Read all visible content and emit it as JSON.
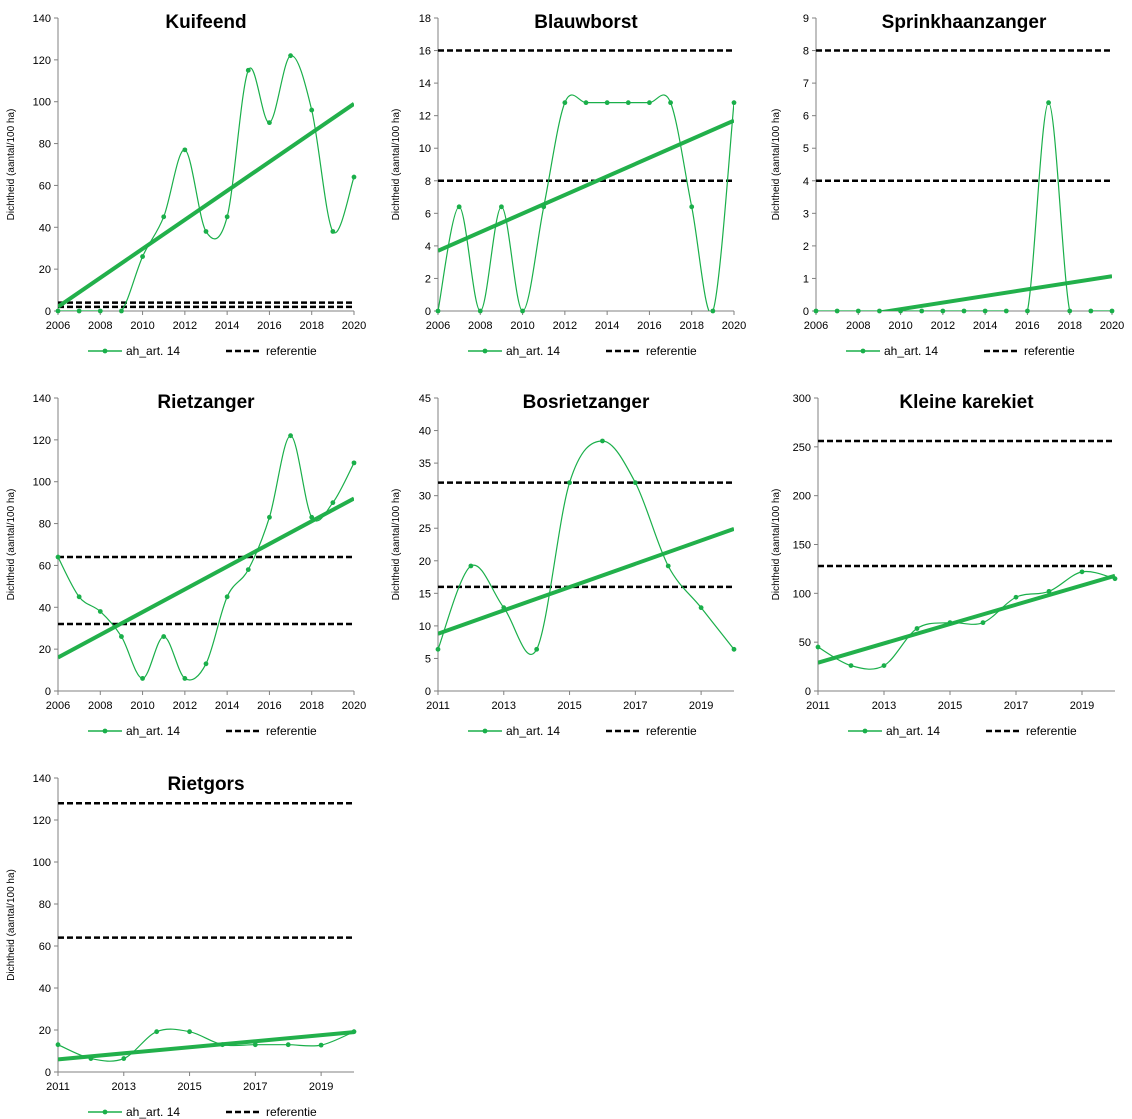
{
  "colors": {
    "series": "#1aaf4a",
    "trend": "#22b04b",
    "reference": "#000000",
    "axis": "#808080"
  },
  "chart_data": [
    {
      "type": "line",
      "title": "Kuifeend",
      "ylabel": "Dichtheid (aantal/100 ha)",
      "x": [
        2006,
        2007,
        2008,
        2009,
        2010,
        2011,
        2012,
        2013,
        2014,
        2015,
        2016,
        2017,
        2018,
        2019,
        2020
      ],
      "xticks": [
        2006,
        2008,
        2010,
        2012,
        2014,
        2016,
        2018,
        2020
      ],
      "xlim": [
        2006,
        2020
      ],
      "ylim": [
        0,
        140
      ],
      "yticks": [
        0,
        20,
        40,
        60,
        80,
        100,
        120,
        140
      ],
      "series": [
        {
          "name": "ah_art. 14",
          "values": [
            0,
            0,
            0,
            0,
            26,
            45,
            77,
            38,
            45,
            115,
            90,
            122,
            96,
            38,
            64
          ]
        }
      ],
      "trend": [
        2,
        99
      ],
      "references": [
        {
          "name": "referentie",
          "values": [
            2,
            4
          ]
        }
      ],
      "legend": [
        "ah_art. 14",
        "referentie"
      ],
      "legend_position": "bottom"
    },
    {
      "type": "line",
      "title": "Blauwborst",
      "ylabel": "Dichtheid (aantal/100 ha)",
      "x": [
        2006,
        2007,
        2008,
        2009,
        2010,
        2011,
        2012,
        2013,
        2014,
        2015,
        2016,
        2017,
        2018,
        2019,
        2020
      ],
      "xticks": [
        2006,
        2008,
        2010,
        2012,
        2014,
        2016,
        2018,
        2020
      ],
      "xlim": [
        2006,
        2020
      ],
      "ylim": [
        0,
        18
      ],
      "yticks": [
        0,
        2,
        4,
        6,
        8,
        10,
        12,
        14,
        16,
        18
      ],
      "series": [
        {
          "name": "ah_art. 14",
          "values": [
            0,
            6.4,
            0,
            6.4,
            0,
            6.4,
            12.8,
            12.8,
            12.8,
            12.8,
            12.8,
            12.8,
            6.4,
            0,
            12.8
          ]
        }
      ],
      "trend": [
        3.7,
        11.7
      ],
      "references": [
        {
          "name": "referentie",
          "values": [
            8,
            16
          ]
        }
      ],
      "legend": [
        "ah_art. 14",
        "referentie"
      ],
      "legend_position": "bottom"
    },
    {
      "type": "line",
      "title": "Sprinkhaanzanger",
      "ylabel": "Dichtheid (aantal/100 ha)",
      "x": [
        2006,
        2007,
        2008,
        2009,
        2010,
        2011,
        2012,
        2013,
        2014,
        2015,
        2016,
        2017,
        2018,
        2019,
        2020
      ],
      "xticks": [
        2006,
        2008,
        2010,
        2012,
        2014,
        2016,
        2018,
        2020
      ],
      "xlim": [
        2006,
        2020
      ],
      "ylim": [
        0,
        9
      ],
      "yticks": [
        0,
        1,
        2,
        3,
        4,
        5,
        6,
        7,
        8,
        9
      ],
      "series": [
        {
          "name": "ah_art. 14",
          "values": [
            0,
            0,
            0,
            0,
            0,
            0,
            0,
            0,
            0,
            0,
            0,
            6.4,
            0,
            0,
            0
          ]
        }
      ],
      "trend": [
        -0.35,
        1.07
      ],
      "references": [
        {
          "name": "referentie",
          "values": [
            4,
            8
          ]
        }
      ],
      "legend": [
        "ah_art. 14",
        "referentie"
      ],
      "legend_position": "bottom"
    },
    {
      "type": "line",
      "title": "Rietzanger",
      "ylabel": "Dichtheid (aantal/100 ha)",
      "x": [
        2006,
        2007,
        2008,
        2009,
        2010,
        2011,
        2012,
        2013,
        2014,
        2015,
        2016,
        2017,
        2018,
        2019,
        2020
      ],
      "xticks": [
        2006,
        2008,
        2010,
        2012,
        2014,
        2016,
        2018,
        2020
      ],
      "xlim": [
        2006,
        2020
      ],
      "ylim": [
        0,
        140
      ],
      "yticks": [
        0,
        20,
        40,
        60,
        80,
        100,
        120,
        140
      ],
      "series": [
        {
          "name": "ah_art. 14",
          "values": [
            64,
            45,
            38,
            26,
            6,
            26,
            6,
            13,
            45,
            58,
            83,
            122,
            83,
            90,
            109
          ]
        }
      ],
      "trend": [
        16,
        92
      ],
      "references": [
        {
          "name": "referentie",
          "values": [
            32,
            64
          ]
        }
      ],
      "legend": [
        "ah_art. 14",
        "referentie"
      ],
      "legend_position": "bottom"
    },
    {
      "type": "line",
      "title": "Bosrietzanger",
      "ylabel": "Dichtheid (aantal/100 ha)",
      "x": [
        2011,
        2012,
        2013,
        2014,
        2015,
        2016,
        2017,
        2018,
        2019,
        2020
      ],
      "xticks": [
        2011,
        2013,
        2015,
        2017,
        2019
      ],
      "xlim": [
        2011,
        2020
      ],
      "ylim": [
        0,
        45
      ],
      "yticks": [
        0,
        5,
        10,
        15,
        20,
        25,
        30,
        35,
        40,
        45
      ],
      "series": [
        {
          "name": "ah_art. 14",
          "values": [
            6.4,
            19.2,
            12.8,
            6.4,
            32,
            38.4,
            32,
            19.2,
            12.8,
            6.4
          ]
        }
      ],
      "trend": [
        8.8,
        24.9
      ],
      "references": [
        {
          "name": "referentie",
          "values": [
            16,
            32
          ]
        }
      ],
      "legend": [
        "ah_art. 14",
        "referentie"
      ],
      "legend_position": "bottom"
    },
    {
      "type": "line",
      "title": "Kleine karekiet",
      "ylabel": "Dichtheid (aantal/100 ha)",
      "x": [
        2011,
        2012,
        2013,
        2014,
        2015,
        2016,
        2017,
        2018,
        2019,
        2020
      ],
      "xticks": [
        2011,
        2013,
        2015,
        2017,
        2019
      ],
      "xlim": [
        2011,
        2020
      ],
      "ylim": [
        0,
        300
      ],
      "yticks": [
        0,
        50,
        100,
        150,
        200,
        250,
        300
      ],
      "series": [
        {
          "name": "ah_art. 14",
          "values": [
            45,
            26,
            26,
            64,
            70,
            70,
            96,
            102,
            122,
            115
          ]
        }
      ],
      "trend": [
        29,
        118
      ],
      "references": [
        {
          "name": "referentie",
          "values": [
            128,
            256
          ]
        }
      ],
      "legend": [
        "ah_art. 14",
        "referentie"
      ],
      "legend_position": "bottom"
    },
    {
      "type": "line",
      "title": "Rietgors",
      "ylabel": "Dichtheid (aantal/100 ha)",
      "x": [
        2011,
        2012,
        2013,
        2014,
        2015,
        2016,
        2017,
        2018,
        2019,
        2020
      ],
      "xticks": [
        2011,
        2013,
        2015,
        2017,
        2019
      ],
      "xlim": [
        2011,
        2020
      ],
      "ylim": [
        0,
        140
      ],
      "yticks": [
        0,
        20,
        40,
        60,
        80,
        100,
        120,
        140
      ],
      "series": [
        {
          "name": "ah_art. 14",
          "values": [
            13,
            6.4,
            6.4,
            19.2,
            19.2,
            13,
            13,
            13,
            12.8,
            19.2
          ]
        }
      ],
      "trend": [
        6,
        19
      ],
      "references": [
        {
          "name": "referentie",
          "values": [
            64,
            128
          ]
        }
      ],
      "legend": [
        "ah_art. 14",
        "referentie"
      ],
      "legend_position": "bottom"
    }
  ]
}
